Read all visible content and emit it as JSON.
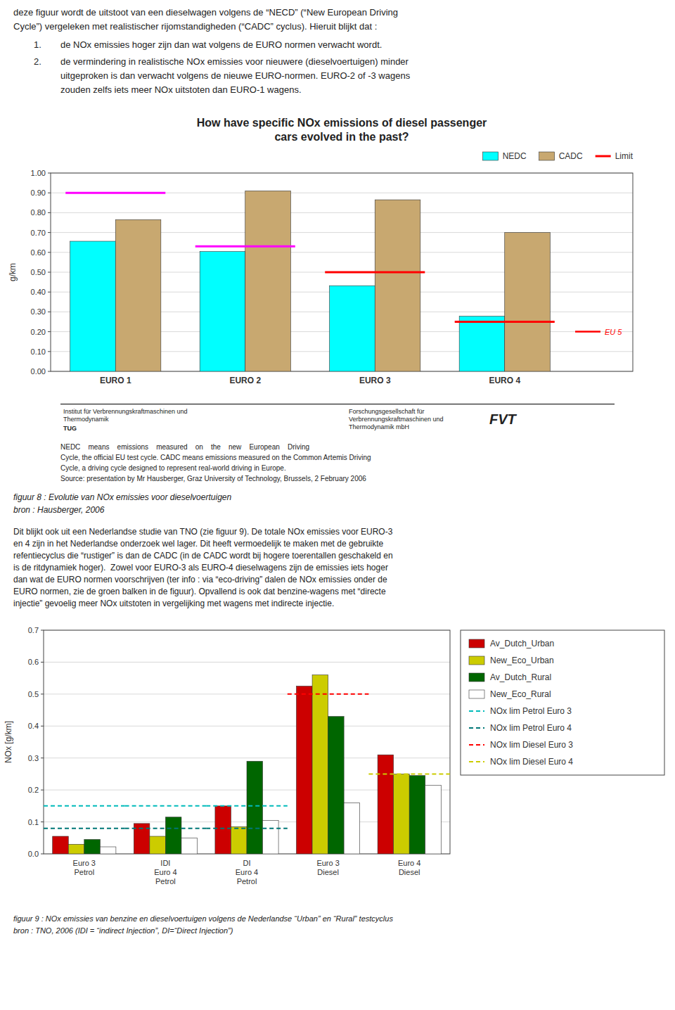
{
  "intro": {
    "lines": [
      "deze figuur wordt de uitstoot van een dieselwagen volgens de “NECD” (“New European Driving",
      "Cycle”) vergeleken met realistischer rijomstandigheden (“CADC” cyclus). Hieruit blijkt dat :"
    ],
    "bullets": [
      {
        "number": "1.",
        "lines": [
          "de NOx emissies hoger zijn dan wat volgens de EURO normen verwacht wordt."
        ]
      },
      {
        "number": "2.",
        "lines": [
          "de vermindering in realistische NOx emissies voor nieuwere (dieselvoertuigen) minder",
          "uitgeproken is dan verwacht volgens de nieuwe EURO-normen. EURO-2 of -3 wagens",
          "zouden zelfs iets meer NOx uitstoten dan EURO-1 wagens."
        ]
      }
    ]
  },
  "chart_data": [
    {
      "type": "bar",
      "title": "How have specific NOx emissions of diesel passenger\ncars evolved in the past?",
      "categories": [
        "EURO 1",
        "EURO 2",
        "EURO 3",
        "EURO 4"
      ],
      "series": [
        {
          "name": "NEDC",
          "color": "#00FFFF",
          "values": [
            0.656,
            0.604,
            0.432,
            0.278
          ]
        },
        {
          "name": "CADC",
          "color": "#C8A870",
          "values": [
            0.765,
            0.91,
            0.865,
            0.7
          ]
        },
        {
          "name": "Limit",
          "type": "line",
          "marker": "hline",
          "line_style": "solid",
          "color": "#FF0000",
          "colors": [
            "#FF00FF",
            "#FF00FF",
            "#FF0000",
            "#FF0000"
          ],
          "values": [
            0.9,
            0.63,
            0.5,
            0.25
          ]
        }
      ],
      "annotations": [
        {
          "text": "EU 5",
          "value": 0.2,
          "color": "#FF0000"
        }
      ],
      "ylabel": "g/km",
      "ylim": [
        0.0,
        1.0
      ],
      "yticks": [
        {
          "value": 0.0,
          "label": "0.00"
        },
        {
          "value": 0.1,
          "label": "0.10"
        },
        {
          "value": 0.2,
          "label": "0.20"
        },
        {
          "value": 0.3,
          "label": "0.30"
        },
        {
          "value": 0.4,
          "label": "0.40"
        },
        {
          "value": 0.5,
          "label": "0.50"
        },
        {
          "value": 0.6,
          "label": "0.60"
        },
        {
          "value": 0.7,
          "label": "0.70"
        },
        {
          "value": 0.8,
          "label": "0.80"
        },
        {
          "value": 0.9,
          "label": "0.90"
        },
        {
          "value": 1.0,
          "label": "1.00"
        }
      ],
      "grid": true,
      "legend": "top-right"
    },
    {
      "type": "bar",
      "categories": [
        "Euro 3\nPetrol",
        "IDI\nEuro 4\nPetrol",
        "DI\nEuro 4\nPetrol",
        "Euro 3\nDiesel",
        "Euro 4\nDiesel"
      ],
      "series": [
        {
          "name": "Av_Dutch_Urban",
          "color": "#CC0000",
          "values": [
            0.055,
            0.095,
            0.15,
            0.525,
            0.31
          ]
        },
        {
          "name": "New_Eco_Urban",
          "color": "#CCCC00",
          "values": [
            0.03,
            0.055,
            0.085,
            0.56,
            0.25
          ]
        },
        {
          "name": "Av_Dutch_Rural",
          "color": "#006600",
          "values": [
            0.045,
            0.115,
            0.29,
            0.43,
            0.245
          ]
        },
        {
          "name": "New_Eco_Rural",
          "color": "#FFFFFF",
          "values": [
            0.022,
            0.05,
            0.105,
            0.16,
            0.215
          ]
        },
        {
          "name": "NOx lim Petrol Euro 3",
          "type": "line",
          "marker": "hline",
          "line_style": "dashed",
          "color": "#00BBBB",
          "values": [
            0.15,
            0.15,
            0.15,
            null,
            null
          ]
        },
        {
          "name": "NOx lim Petrol Euro 4",
          "type": "line",
          "marker": "hline",
          "line_style": "dashed",
          "color": "#007777",
          "values": [
            0.08,
            0.08,
            0.08,
            null,
            null
          ]
        },
        {
          "name": "NOx lim Diesel Euro 3",
          "type": "line",
          "marker": "hline",
          "line_style": "dashed",
          "color": "#FF0000",
          "values": [
            null,
            null,
            null,
            0.5,
            null
          ]
        },
        {
          "name": "NOx lim Diesel Euro 4",
          "type": "line",
          "marker": "hline",
          "line_style": "dashed",
          "color": "#CCCC00",
          "values": [
            null,
            null,
            null,
            null,
            0.25
          ]
        }
      ],
      "ylabel": "NOx [g/km]",
      "ylim": [
        0.0,
        0.7
      ],
      "yticks": [
        {
          "value": 0.0,
          "label": "0.0"
        },
        0.1,
        0.2,
        0.3,
        0.4,
        0.5,
        0.6,
        0.7
      ],
      "grid": true,
      "legend": "right"
    }
  ],
  "footer": {
    "left": [
      "Institut für Verbrennungskraftmaschinen und",
      "Thermodynamik"
    ],
    "left_logo": "TUG",
    "right": [
      "Forschungsgesellschaft für",
      "Verbrennungskraftmaschinen und",
      "Thermodynamik mbH"
    ],
    "right_logo": "FVT"
  },
  "description": [
    "NEDC    means    emissions    measured    on    the    new    European    Driving",
    "Cycle, the official EU test cycle. CADC means emissions measured on the Common Artemis Driving",
    "Cycle, a driving cycle designed to represent real-world driving in Europe.",
    "Source: presentation by Mr Hausberger, Graz University of Technology, Brussels, 2 February 2006"
  ],
  "captions": [
    {
      "text": "figuur 8 : Evolutie van NOx emissies voor dieselvoertuigen",
      "source": "bron : Hausberger, 2006"
    },
    {
      "text": "figuur 9 : NOx emissies van benzine en dieselvoertuigen volgens de Nederlandse “Urban” en “Rural” testcyclus",
      "source": "bron : TNO, 2006 (IDI = “indirect Injection”, DI=“Direct Injection”)"
    }
  ],
  "middle_text": "Dit blijkt ook uit een Nederlandse studie van TNO (zie figuur 9). De totale NOx emissies voor EURO-3\nen 4 zijn in het Nederlandse onderzoek wel lager. Dit heeft vermoedelijk te maken met de gebruikte\nrefentiecyclus die “rustiger” is dan de CADC (in de CADC wordt bij hogere toerentallen geschakeld en\nis de ritdynamiek hoger).  Zowel voor EURO-3 als EURO-4 dieselwagens zijn de emissies iets hoger\ndan wat de EURO normen voorschrijven (ter info : via “eco-driving” dalen de NOx emissies onder de\nEURO normen, zie de groen balken in de figuur). Opvallend is ook dat benzine-wagens met “directe\ninjectie” gevoelig meer NOx uitstoten in vergelijking met wagens met indirecte injectie."
}
